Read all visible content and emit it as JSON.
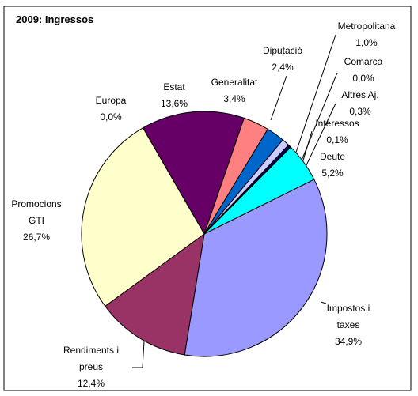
{
  "chart_data": {
    "type": "pie",
    "title": "2009: Ingressos",
    "categories": [
      "Europa",
      "Estat",
      "Generalitat",
      "Diputació",
      "Metropolitana",
      "Comarca",
      "Altres Aj.",
      "Interessos",
      "Deute",
      "Impostos i taxes",
      "Rendiments i preus",
      "Promocions GTI"
    ],
    "values": [
      0.0,
      13.6,
      3.4,
      2.4,
      1.0,
      0.0,
      0.3,
      0.1,
      5.2,
      34.9,
      12.4,
      26.7
    ],
    "value_labels": [
      "0,0%",
      "13,6%",
      "3,4%",
      "2,4%",
      "1,0%",
      "0,0%",
      "0,3%",
      "0,1%",
      "5,2%",
      "34,9%",
      "12,4%",
      "26,7%"
    ],
    "colors": [
      "#ffffcc",
      "#660066",
      "#ff8080",
      "#0066cc",
      "#ccccff",
      "#000080",
      "#000080",
      "#800080",
      "#00ffff",
      "#9999ff",
      "#993366",
      "#ffffcc"
    ]
  }
}
